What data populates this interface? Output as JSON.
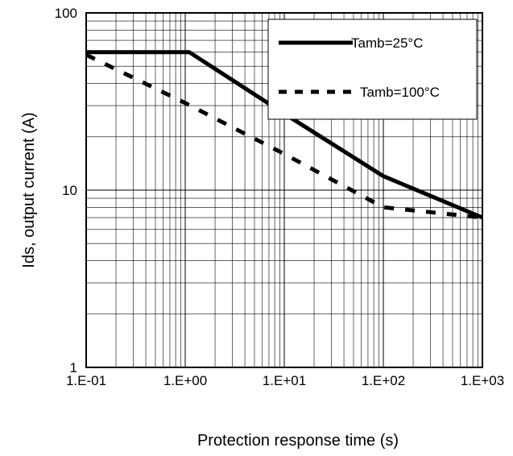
{
  "chart_data": {
    "type": "line",
    "xlabel": "Protection response time (s)",
    "ylabel": "Ids, output current (A)",
    "x_scale": "log",
    "y_scale": "log",
    "xlim": [
      0.1,
      1000
    ],
    "ylim": [
      1,
      100
    ],
    "x_ticks": [
      0.1,
      1,
      10,
      100,
      1000
    ],
    "x_tick_labels": [
      "1.E-01",
      "1.E+00",
      "1.E+01",
      "1.E+02",
      "1.E+03"
    ],
    "y_ticks": [
      1,
      10,
      100
    ],
    "y_tick_labels": [
      "1",
      "10",
      "100"
    ],
    "grid": true,
    "legend_position": "top-right",
    "series": [
      {
        "name": "Tamb=25°C",
        "style": "solid",
        "color": "#000000",
        "x": [
          0.1,
          1.1,
          10,
          100,
          1000
        ],
        "y": [
          60,
          60,
          27,
          12,
          7
        ]
      },
      {
        "name": "Tamb=100°C",
        "style": "dashed",
        "color": "#000000",
        "x": [
          0.1,
          1,
          10,
          100,
          1000
        ],
        "y": [
          58,
          31,
          16,
          8,
          7
        ]
      }
    ]
  }
}
